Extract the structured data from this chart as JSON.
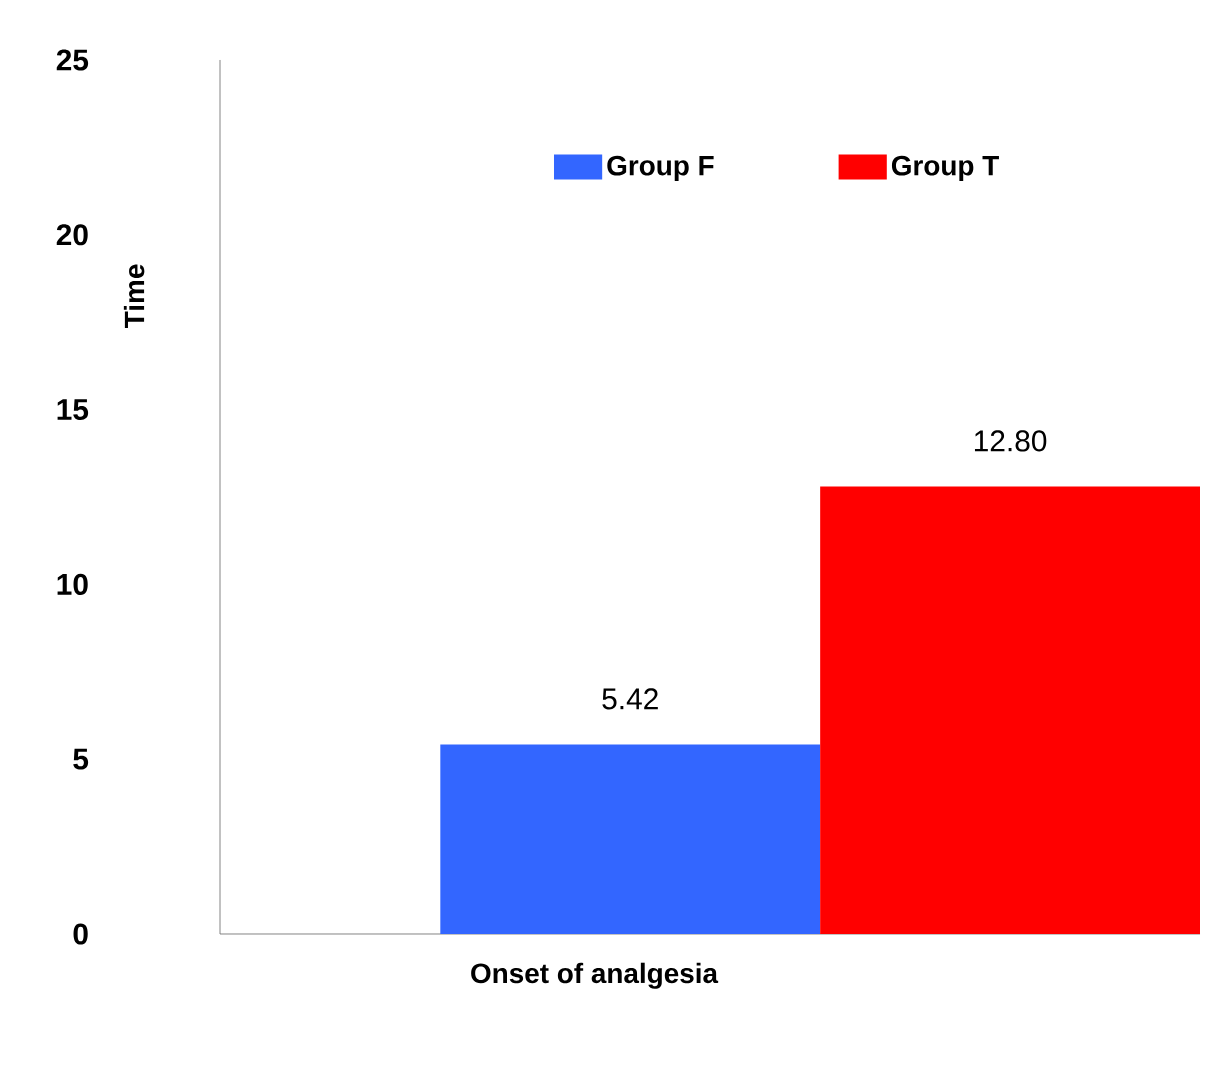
{
  "chart_data": {
    "type": "bar",
    "categories": [
      null
    ],
    "xlabel": "Onset of analgesia",
    "ylabel": "Time",
    "ylim": [
      0,
      25
    ],
    "yticks": [
      0,
      5,
      10,
      15,
      20,
      25
    ],
    "legend": "top",
    "series": [
      {
        "name": "Group F",
        "color": "#3366ff",
        "values": [
          5.42
        ],
        "value_labels": [
          "5.42"
        ]
      },
      {
        "name": "Group T",
        "color": "#ff0000",
        "values": [
          12.8
        ],
        "value_labels": [
          "12.80"
        ]
      }
    ]
  }
}
